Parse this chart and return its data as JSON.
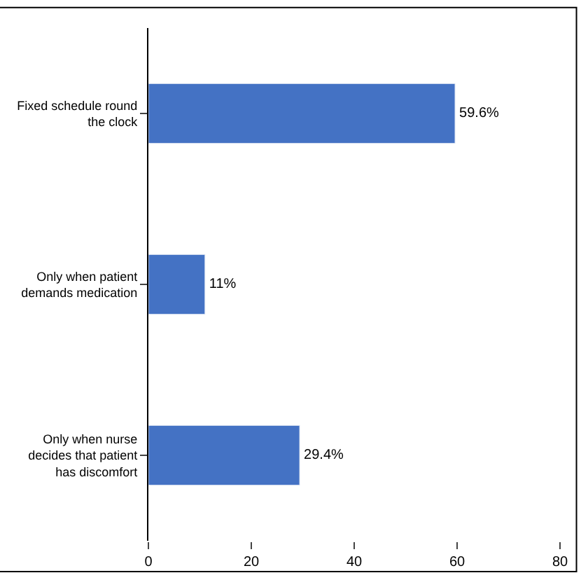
{
  "chart_data": {
    "type": "bar",
    "orientation": "horizontal",
    "categories": [
      "Fixed schedule round the clock",
      "Only when patient demands medication",
      "Only when nurse decides that patient has discomfort"
    ],
    "values": [
      59.6,
      11,
      29.4
    ],
    "value_labels": [
      "59.6%",
      "11%",
      "29.4%"
    ],
    "color": "#4472c4",
    "xlim": [
      0,
      80
    ],
    "xticks": [
      0,
      20,
      40,
      60,
      80
    ]
  }
}
